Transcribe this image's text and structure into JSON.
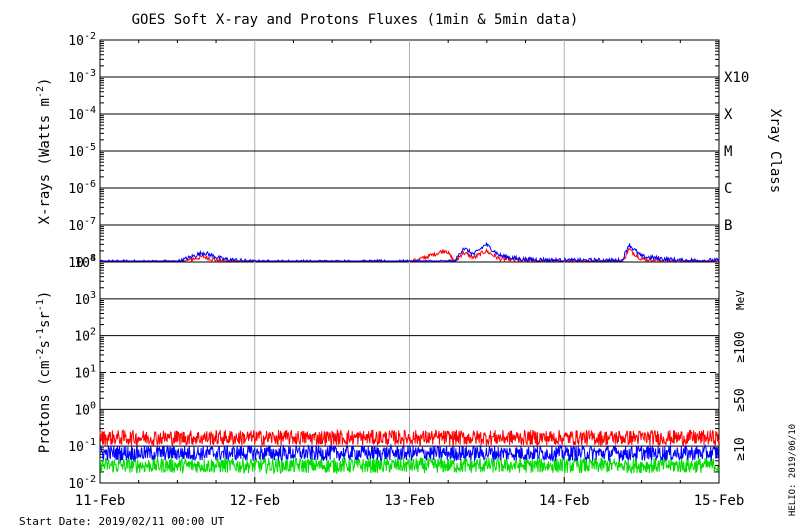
{
  "chart_data": [
    {
      "type": "line",
      "title": "GOES Soft X-ray and Protons Fluxes   (1min & 5min data)",
      "ylabel": "X-rays (Watts m",
      "ylabel_sup": "-2",
      "ylabel_close": ")",
      "yscale": "log",
      "ylim": [
        1e-08,
        0.01
      ],
      "ytick_labels": [
        {
          "base": "10",
          "exp": "-8"
        },
        {
          "base": "10",
          "exp": "-7"
        },
        {
          "base": "10",
          "exp": "-6"
        },
        {
          "base": "10",
          "exp": "-5"
        },
        {
          "base": "10",
          "exp": "-4"
        },
        {
          "base": "10",
          "exp": "-3"
        },
        {
          "base": "10",
          "exp": "-2"
        }
      ],
      "right_axis_title": "Xray Class",
      "class_labels": [
        "B",
        "C",
        "M",
        "X",
        "X10"
      ],
      "xlim": [
        "2019-02-11",
        "2019-02-15"
      ],
      "series": [
        {
          "color": "#ff0000",
          "points": [
            [
              "2019-02-11 00:00",
              9.5e-09
            ],
            [
              "2019-02-11 12:00",
              9.5e-09
            ],
            [
              "2019-02-11 16:00",
              1.4e-08
            ],
            [
              "2019-02-11 19:00",
              1e-08
            ],
            [
              "2019-02-12 00:00",
              9.5e-09
            ],
            [
              "2019-02-12 12:00",
              9.5e-09
            ],
            [
              "2019-02-13 00:00",
              9.5e-09
            ],
            [
              "2019-02-13 05:40",
              2.1e-08
            ],
            [
              "2019-02-13 07:00",
              1e-08
            ],
            [
              "2019-02-13 08:20",
              1.8e-08
            ],
            [
              "2019-02-13 10:00",
              1.3e-08
            ],
            [
              "2019-02-13 11:50",
              2e-08
            ],
            [
              "2019-02-13 14:00",
              1.2e-08
            ],
            [
              "2019-02-13 17:00",
              1.1e-08
            ],
            [
              "2019-02-14 00:00",
              1e-08
            ],
            [
              "2019-02-14 09:00",
              1e-08
            ],
            [
              "2019-02-14 10:00",
              2.2e-08
            ],
            [
              "2019-02-14 12:00",
              1.2e-08
            ],
            [
              "2019-02-14 18:00",
              1e-08
            ],
            [
              "2019-02-15 00:00",
              1e-08
            ]
          ]
        },
        {
          "color": "#0000ff",
          "points": [
            [
              "2019-02-11 00:00",
              1e-08
            ],
            [
              "2019-02-11 12:00",
              1e-08
            ],
            [
              "2019-02-11 16:00",
              1.8e-08
            ],
            [
              "2019-02-11 19:00",
              1.2e-08
            ],
            [
              "2019-02-12 00:00",
              1e-08
            ],
            [
              "2019-02-12 12:00",
              1e-08
            ],
            [
              "2019-02-13 00:00",
              1e-08
            ],
            [
              "2019-02-13 07:00",
              1e-08
            ],
            [
              "2019-02-13 08:20",
              2.4e-08
            ],
            [
              "2019-02-13 10:00",
              1.6e-08
            ],
            [
              "2019-02-13 11:50",
              3e-08
            ],
            [
              "2019-02-13 14:00",
              1.5e-08
            ],
            [
              "2019-02-13 17:00",
              1.2e-08
            ],
            [
              "2019-02-14 00:00",
              1.1e-08
            ],
            [
              "2019-02-14 09:00",
              1.1e-08
            ],
            [
              "2019-02-14 10:00",
              3e-08
            ],
            [
              "2019-02-14 12:00",
              1.4e-08
            ],
            [
              "2019-02-14 18:00",
              1.1e-08
            ],
            [
              "2019-02-15 00:00",
              1.1e-08
            ]
          ]
        }
      ]
    },
    {
      "type": "line",
      "ylabel": "Protons (cm",
      "ylabel_sup1": "-2",
      "ylabel_mid1": "s",
      "ylabel_sup2": "-1",
      "ylabel_mid2": "sr",
      "ylabel_sup3": "-1",
      "ylabel_close": ")",
      "yscale": "log",
      "ylim": [
        0.01,
        10000
      ],
      "ytick_labels": [
        {
          "base": "10",
          "exp": "-2"
        },
        {
          "base": "10",
          "exp": "-1"
        },
        {
          "base": "10",
          "exp": "0"
        },
        {
          "base": "10",
          "exp": "1"
        },
        {
          "base": "10",
          "exp": "2"
        },
        {
          "base": "10",
          "exp": "3"
        },
        {
          "base": "10",
          "exp": "4"
        }
      ],
      "threshold_line": 10,
      "legend": [
        {
          "label": "MeV",
          "color": "#000000"
        },
        {
          "label": "≥100",
          "color": "#00cc00"
        },
        {
          "label": "≥50",
          "color": "#0000cc"
        },
        {
          "label": "≥10",
          "color": "#ff0000"
        }
      ],
      "series": [
        {
          "name": "≥10",
          "color": "#ff0000",
          "level": 0.17
        },
        {
          "name": "≥50",
          "color": "#0000ff",
          "level": 0.065
        },
        {
          "name": "≥100",
          "color": "#00dd00",
          "level": 0.03
        }
      ]
    }
  ],
  "x_ticks": [
    "11-Feb",
    "12-Feb",
    "13-Feb",
    "14-Feb",
    "15-Feb"
  ],
  "footer": {
    "start_date": "Start Date: 2019/02/11 00:00 UT",
    "stamp": "HELIO: 2019/06/10"
  }
}
